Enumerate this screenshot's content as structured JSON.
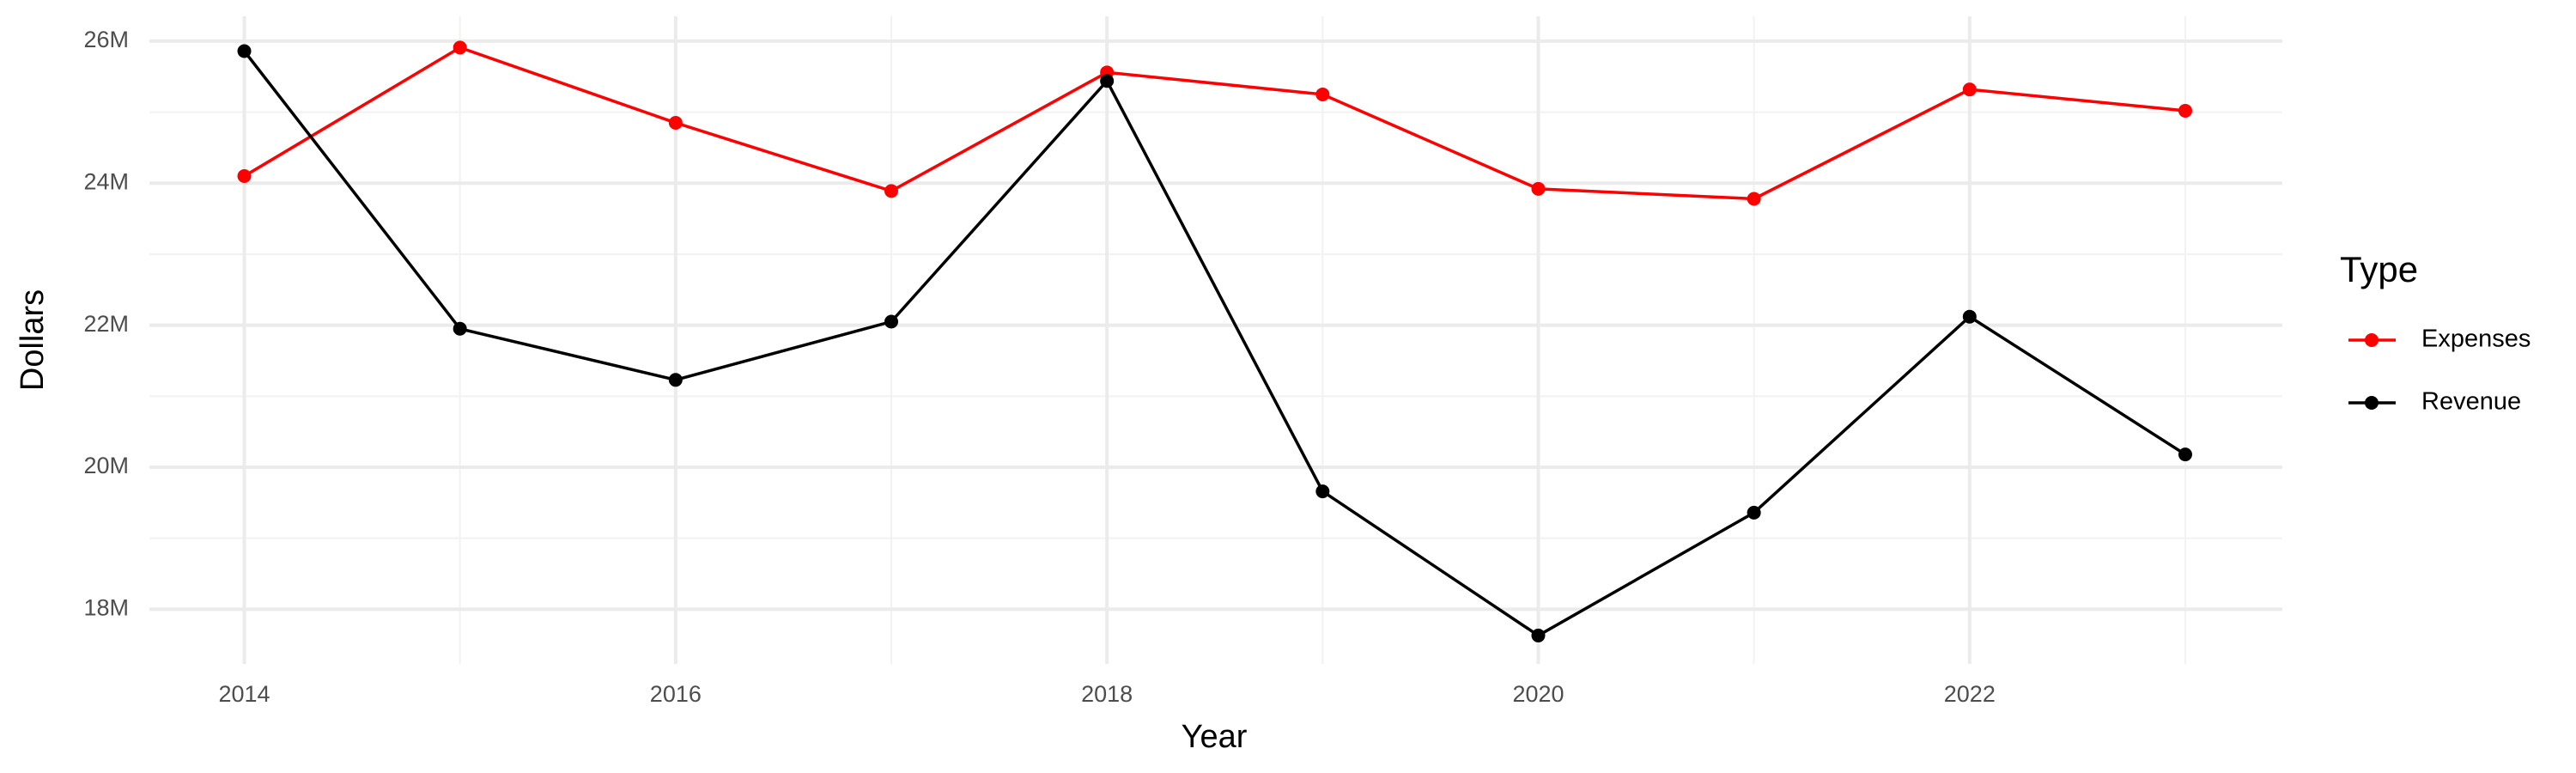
{
  "chart_data": {
    "type": "line",
    "x_label": "Year",
    "y_label": "Dollars",
    "x": [
      2014,
      2015,
      2016,
      2017,
      2018,
      2019,
      2020,
      2021,
      2022,
      2023
    ],
    "series": [
      {
        "name": "Expenses",
        "color": "#ff0000",
        "values": [
          24100000,
          25910000,
          24850000,
          23890000,
          25560000,
          25250000,
          23920000,
          23780000,
          25320000,
          25020000
        ]
      },
      {
        "name": "Revenue",
        "color": "#000000",
        "values": [
          25860000,
          21950000,
          21230000,
          22050000,
          25440000,
          19660000,
          17630000,
          19360000,
          22120000,
          20180000
        ]
      }
    ],
    "xlim": [
      2013.56,
      2023.45
    ],
    "ylim": [
      17230000,
      26350000
    ],
    "xticks": [
      2014,
      2016,
      2018,
      2020,
      2022
    ],
    "yticks": [
      {
        "value": 18000000,
        "label": "18M"
      },
      {
        "value": 20000000,
        "label": "20M"
      },
      {
        "value": 22000000,
        "label": "22M"
      },
      {
        "value": 24000000,
        "label": "24M"
      },
      {
        "value": 26000000,
        "label": "26M"
      }
    ],
    "grid": true,
    "legend_title": "Type",
    "legend_position": "right"
  }
}
